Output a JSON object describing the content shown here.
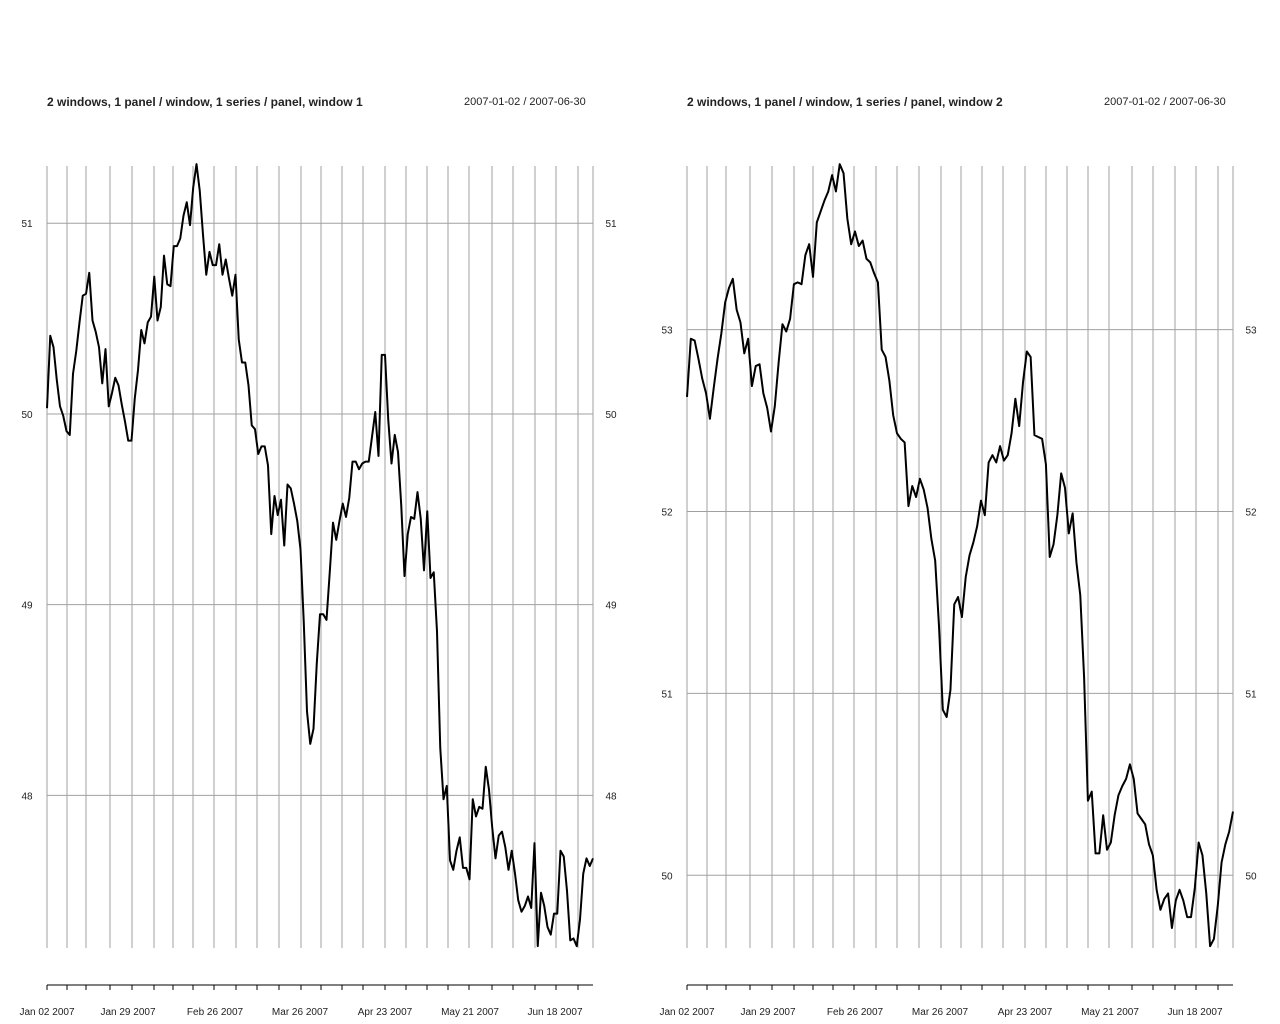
{
  "chart_data": [
    {
      "type": "line",
      "title": "2 windows, 1 panel / window, 1 series / panel, window 1",
      "date_range": "2007-01-02 / 2007-06-30",
      "x_tick_labels": [
        "Jan 02 2007",
        "Jan 29 2007",
        "Feb 26 2007",
        "Mar 26 2007",
        "Apr 23 2007",
        "May 21 2007",
        "Jun 18 2007"
      ],
      "y_ticks": [
        48,
        49,
        50,
        51
      ],
      "ylim": [
        47.2,
        51.3
      ],
      "grid": true,
      "line_color": "#000000",
      "grid_color": "#a0a0a0",
      "series": [
        {
          "values": [
            50.03,
            50.41,
            50.35,
            50.18,
            50.04,
            49.99,
            49.91,
            49.89,
            50.21,
            50.33,
            50.48,
            50.62,
            50.63,
            50.74,
            50.49,
            50.43,
            50.35,
            50.16,
            50.34,
            50.04,
            50.11,
            50.19,
            50.15,
            50.05,
            49.96,
            49.86,
            49.86,
            50.08,
            50.23,
            50.44,
            50.37,
            50.48,
            50.51,
            50.72,
            50.49,
            50.56,
            50.83,
            50.68,
            50.67,
            50.88,
            50.88,
            50.92,
            51.04,
            51.11,
            50.99,
            51.19,
            51.31,
            51.17,
            50.94,
            50.73,
            50.85,
            50.78,
            50.78,
            50.89,
            50.73,
            50.81,
            50.71,
            50.62,
            50.73,
            50.39,
            50.27,
            50.27,
            50.15,
            49.94,
            49.92,
            49.79,
            49.83,
            49.83,
            49.73,
            49.37,
            49.57,
            49.47,
            49.55,
            49.31,
            49.63,
            49.61,
            49.53,
            49.44,
            49.29,
            48.91,
            48.44,
            48.27,
            48.35,
            48.69,
            48.95,
            48.95,
            48.92,
            49.17,
            49.43,
            49.34,
            49.44,
            49.53,
            49.46,
            49.56,
            49.75,
            49.75,
            49.71,
            49.74,
            49.75,
            49.75,
            49.88,
            50.01,
            49.78,
            50.31,
            50.31,
            49.97,
            49.74,
            49.89,
            49.8,
            49.52,
            49.15,
            49.37,
            49.46,
            49.45,
            49.59,
            49.45,
            49.18,
            49.49,
            49.14,
            49.17,
            48.86,
            48.25,
            47.98,
            48.05,
            47.66,
            47.61,
            47.71,
            47.78,
            47.62,
            47.62,
            47.56,
            47.98,
            47.89,
            47.94,
            47.93,
            48.15,
            48.03,
            47.83,
            47.67,
            47.79,
            47.81,
            47.73,
            47.61,
            47.71,
            47.59,
            47.45,
            47.39,
            47.42,
            47.47,
            47.41,
            47.75,
            47.21,
            47.49,
            47.42,
            47.31,
            47.27,
            47.38,
            47.38,
            47.71,
            47.68,
            47.5,
            47.24,
            47.25,
            47.21,
            47.35,
            47.59,
            47.67,
            47.63,
            47.67
          ]
        }
      ]
    },
    {
      "type": "line",
      "title": "2 windows, 1 panel / window, 1 series / panel, window 2",
      "date_range": "2007-01-02 / 2007-06-30",
      "x_tick_labels": [
        "Jan 02 2007",
        "Jan 29 2007",
        "Feb 26 2007",
        "Mar 26 2007",
        "Apr 23 2007",
        "May 21 2007",
        "Jun 18 2007"
      ],
      "y_ticks": [
        50,
        51,
        52,
        53
      ],
      "ylim": [
        49.6,
        53.9
      ],
      "grid": true,
      "line_color": "#000000",
      "grid_color": "#a0a0a0",
      "series": [
        {
          "values": [
            52.63,
            52.95,
            52.94,
            52.84,
            52.73,
            52.65,
            52.51,
            52.68,
            52.84,
            52.98,
            53.15,
            53.23,
            53.28,
            53.11,
            53.04,
            52.87,
            52.95,
            52.69,
            52.8,
            52.81,
            52.65,
            52.57,
            52.44,
            52.58,
            52.82,
            53.03,
            52.99,
            53.06,
            53.25,
            53.26,
            53.25,
            53.41,
            53.47,
            53.29,
            53.59,
            53.65,
            53.71,
            53.76,
            53.85,
            53.76,
            53.91,
            53.86,
            53.61,
            53.47,
            53.54,
            53.46,
            53.49,
            53.39,
            53.37,
            53.31,
            53.26,
            52.89,
            52.85,
            52.72,
            52.53,
            52.43,
            52.4,
            52.38,
            52.03,
            52.14,
            52.08,
            52.18,
            52.12,
            52.02,
            51.85,
            51.73,
            51.37,
            50.91,
            50.87,
            51.02,
            51.49,
            51.53,
            51.42,
            51.64,
            51.76,
            51.83,
            51.92,
            52.06,
            51.98,
            52.27,
            52.31,
            52.27,
            52.36,
            52.28,
            52.31,
            52.43,
            52.62,
            52.47,
            52.71,
            52.88,
            52.85,
            52.42,
            52.41,
            52.4,
            52.26,
            51.75,
            51.82,
            51.98,
            52.21,
            52.13,
            51.88,
            51.99,
            51.72,
            51.54,
            51.09,
            50.41,
            50.46,
            50.12,
            50.12,
            50.33,
            50.14,
            50.18,
            50.33,
            50.44,
            50.49,
            50.53,
            50.61,
            50.53,
            50.34,
            50.31,
            50.28,
            50.17,
            50.11,
            49.92,
            49.81,
            49.87,
            49.9,
            49.71,
            49.86,
            49.92,
            49.86,
            49.77,
            49.77,
            49.93,
            50.18,
            50.11,
            49.9,
            49.61,
            49.65,
            49.83,
            50.07,
            50.17,
            50.24,
            50.35
          ]
        }
      ]
    }
  ]
}
